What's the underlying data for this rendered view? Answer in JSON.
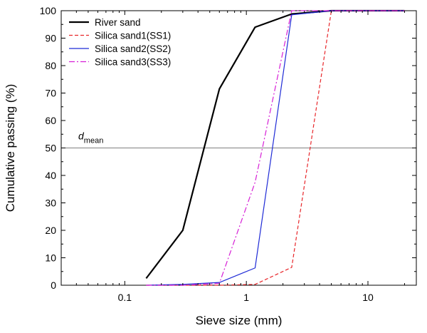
{
  "chart_data": {
    "type": "line",
    "xlabel": "Sieve size (mm)",
    "ylabel": "Cumulative passing (%)",
    "xscale": "log",
    "xlim": [
      0.03,
      25
    ],
    "ylim": [
      0,
      100
    ],
    "x_ticks": [
      0.1,
      1,
      10
    ],
    "x_tick_labels": [
      "0.1",
      "1",
      "10"
    ],
    "y_ticks": [
      0,
      10,
      20,
      30,
      40,
      50,
      60,
      70,
      80,
      90,
      100
    ],
    "y_tick_labels": [
      "0",
      "10",
      "20",
      "30",
      "40",
      "50",
      "60",
      "70",
      "80",
      "90",
      "100"
    ],
    "grid": false,
    "legend_position": "top-left",
    "reference_line": {
      "y": 50,
      "label_main": "d",
      "label_sub": "mean",
      "color": "#808080"
    },
    "series": [
      {
        "name": "River sand",
        "color": "#000000",
        "dash": "solid",
        "width": 2.2,
        "x": [
          0.15,
          0.3,
          0.6,
          1.18,
          2.36,
          5,
          10,
          20
        ],
        "y": [
          2.5,
          20,
          71.5,
          94,
          98.8,
          100,
          100,
          100
        ]
      },
      {
        "name": "Silica sand1(SS1)",
        "color": "#e8262a",
        "dash": "dashed",
        "width": 1.2,
        "x": [
          0.15,
          0.3,
          0.6,
          1.18,
          2.36,
          5,
          10,
          20
        ],
        "y": [
          0,
          0,
          0,
          0.3,
          6.5,
          100,
          100,
          100
        ]
      },
      {
        "name": "Silica sand2(SS2)",
        "color": "#1f2bd6",
        "dash": "solid",
        "width": 1.2,
        "x": [
          0.15,
          0.3,
          0.6,
          1.18,
          2.36,
          5,
          10,
          20
        ],
        "y": [
          0,
          0.3,
          1,
          6.3,
          98.5,
          100,
          100,
          100
        ]
      },
      {
        "name": "Silica sand3(SS3)",
        "color": "#d61fd6",
        "dash": "dashdot",
        "width": 1.2,
        "x": [
          0.15,
          0.3,
          0.6,
          1.18,
          2.36,
          5,
          10,
          20
        ],
        "y": [
          0,
          0,
          0.7,
          37.5,
          100,
          100,
          100,
          100
        ]
      }
    ]
  }
}
